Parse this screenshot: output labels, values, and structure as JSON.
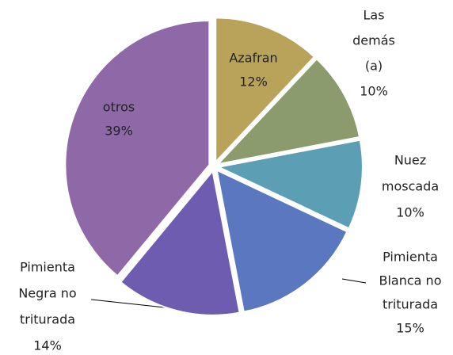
{
  "chart_data": {
    "type": "pie",
    "categories": [
      [
        "Azafran"
      ],
      [
        "Las",
        "demás",
        "(a)"
      ],
      [
        "Nuez",
        "moscada"
      ],
      [
        "Pimienta",
        "Blanca no",
        "triturada"
      ],
      [
        "Pimienta",
        "Negra no",
        "triturada"
      ],
      [
        "otros"
      ]
    ],
    "values": [
      12,
      10,
      10,
      15,
      14,
      39
    ],
    "value_labels": [
      "12%",
      "10%",
      "10%",
      "15%",
      "14%",
      "39%"
    ],
    "colors": [
      "#b9a35b",
      "#8c9b6d",
      "#5c9fb5",
      "#5a77bf",
      "#6d5cb0",
      "#8f69a7"
    ]
  }
}
